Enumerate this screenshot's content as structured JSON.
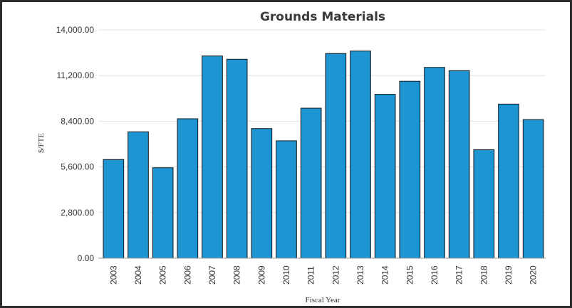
{
  "chart_data": {
    "type": "bar",
    "title": "Grounds Materials",
    "xlabel": "Fiscal Year",
    "ylabel": "$/FTE",
    "ylim": [
      0,
      14000
    ],
    "yticks": [
      "0.00",
      "2,800.00",
      "5,600.00",
      "8,400.00",
      "11,200.00",
      "14,000.00"
    ],
    "categories": [
      "2003",
      "2004",
      "2005",
      "2006",
      "2007",
      "2008",
      "2009",
      "2010",
      "2011",
      "2012",
      "2013",
      "2014",
      "2015",
      "2016",
      "2017",
      "2018",
      "2019",
      "2020"
    ],
    "values": [
      6050,
      7750,
      5550,
      8550,
      12400,
      12200,
      7950,
      7200,
      9200,
      12550,
      12700,
      10050,
      10850,
      11700,
      11500,
      6650,
      9450,
      8500
    ],
    "grid": true,
    "bar_color": "#1e95d3",
    "legend": "none"
  }
}
